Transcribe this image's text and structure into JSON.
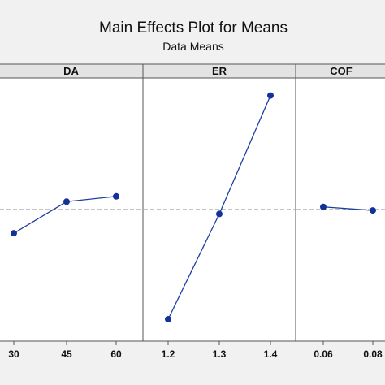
{
  "chart_data": {
    "type": "line",
    "title": "Main Effects Plot for Means",
    "subtitle": "Data Means",
    "grand_mean": 0,
    "grid": false,
    "line_color": "#1f3f9f",
    "marker_color": "#14309a",
    "reference_line_color": "#888888",
    "panel_background": "#ffffff",
    "header_background": "#e3e3e3",
    "page_background": "#f1f1f1",
    "panels": [
      {
        "label": "DA",
        "x": [
          "30",
          "45",
          "60"
        ],
        "y": [
          -0.27,
          0.09,
          0.15
        ]
      },
      {
        "label": "ER",
        "x": [
          "1.2",
          "1.3",
          "1.4"
        ],
        "y": [
          -1.25,
          -0.05,
          1.3
        ]
      },
      {
        "label": "COF",
        "x": [
          "0.06",
          "0.08"
        ],
        "y": [
          0.03,
          -0.01
        ]
      }
    ]
  }
}
